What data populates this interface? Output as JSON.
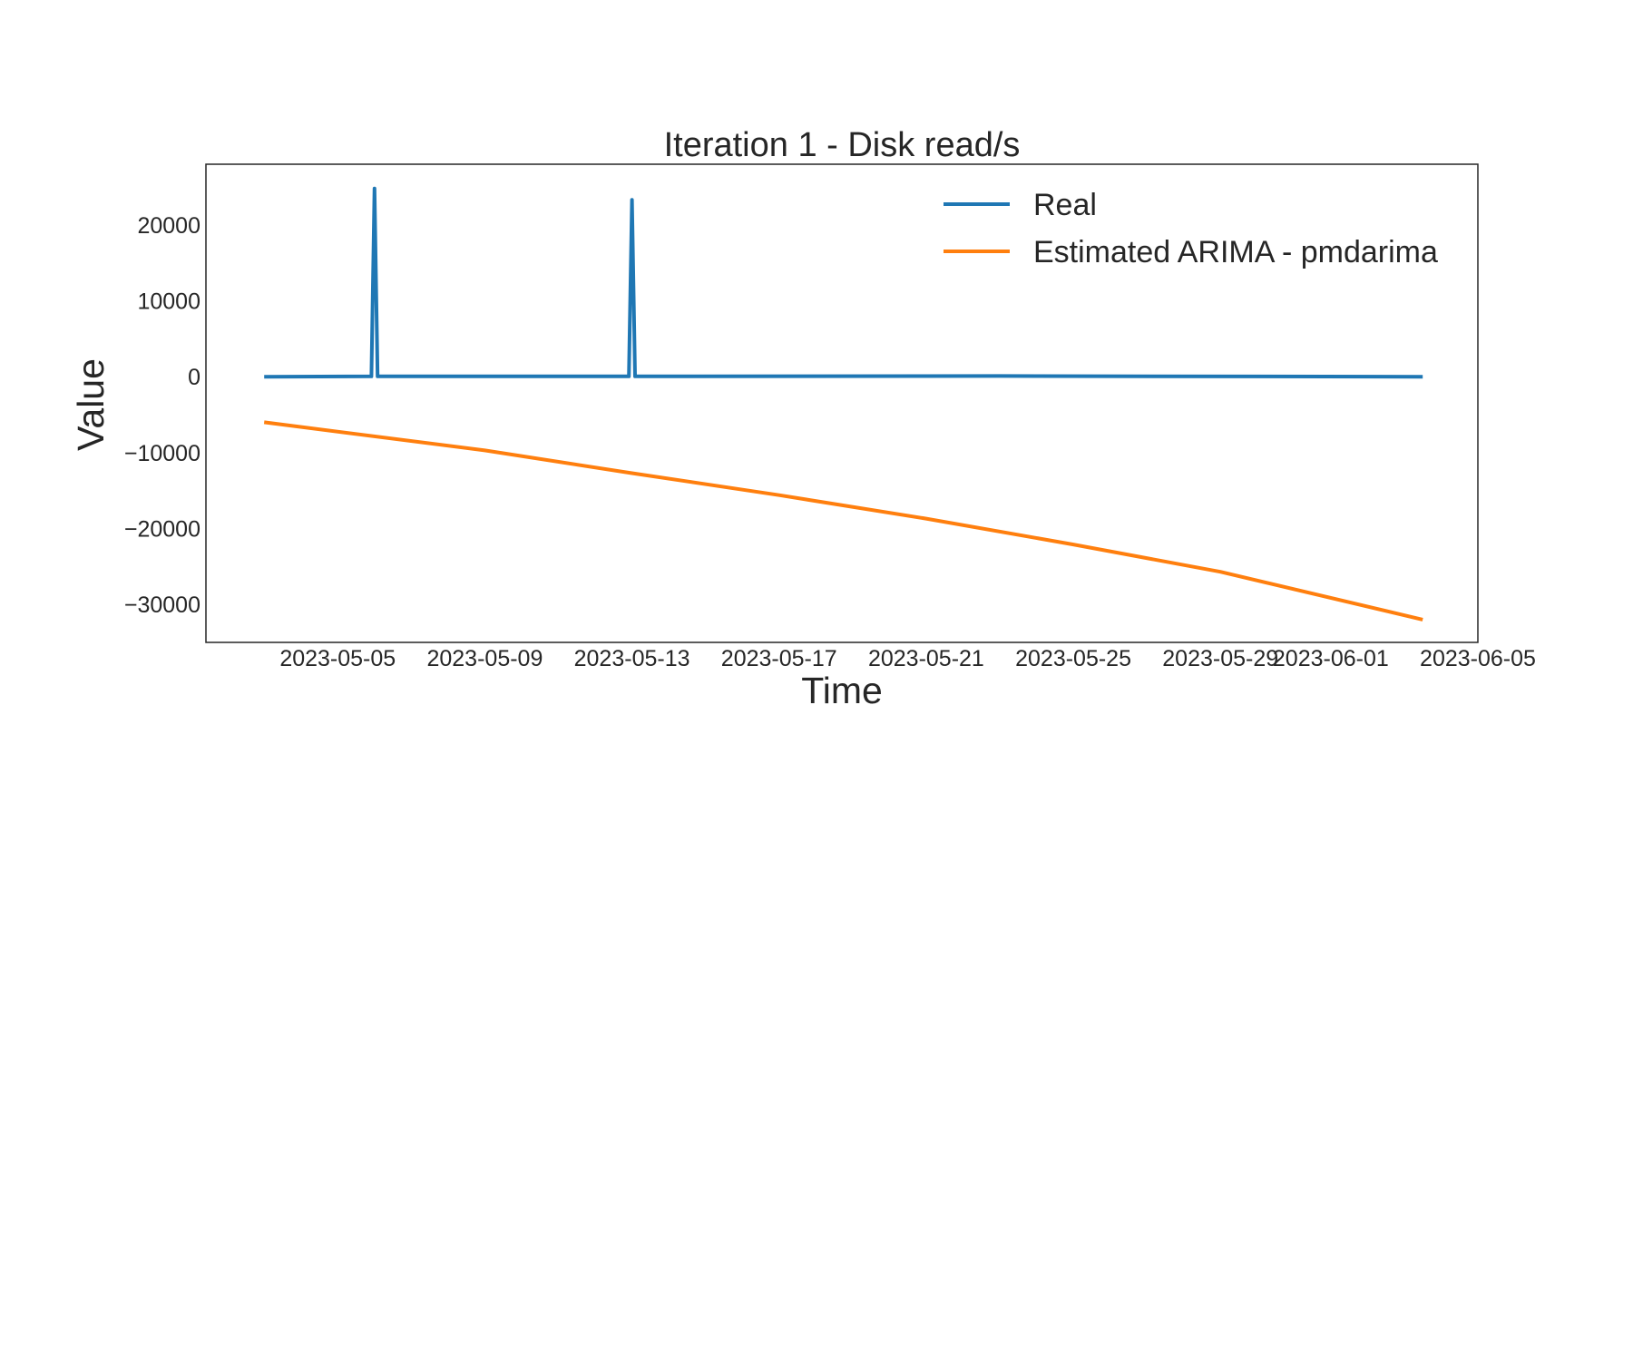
{
  "chart_data": {
    "type": "line",
    "title": "Iteration 1 - Disk read/s",
    "xlabel": "Time",
    "ylabel": "Value",
    "xlim": [
      "2023-05-01T10:00",
      "2023-06-05T00:00"
    ],
    "ylim": [
      -35000,
      28000
    ],
    "xticks": [
      "2023-05-05",
      "2023-05-09",
      "2023-05-13",
      "2023-05-17",
      "2023-05-21",
      "2023-05-25",
      "2023-05-29",
      "2023-06-01",
      "2023-06-05"
    ],
    "yticks": [
      20000,
      10000,
      0,
      -10000,
      -20000,
      -30000
    ],
    "ytick_labels": [
      "20000",
      "10000",
      "0",
      "−10000",
      "−20000",
      "−30000"
    ],
    "grid": false,
    "legend_position": "top-right",
    "series": [
      {
        "name": "Real",
        "color": "#1f77b4",
        "points": [
          [
            "2023-05-03T00:00",
            0
          ],
          [
            "2023-05-05T22:00",
            50
          ],
          [
            "2023-05-06T00:00",
            24800
          ],
          [
            "2023-05-06T02:00",
            50
          ],
          [
            "2023-05-12T22:00",
            50
          ],
          [
            "2023-05-13T00:00",
            23300
          ],
          [
            "2023-05-13T02:00",
            50
          ],
          [
            "2023-05-23T00:00",
            100
          ],
          [
            "2023-06-03T12:00",
            0
          ]
        ]
      },
      {
        "name": "Estimated ARIMA - pmdarima",
        "color": "#ff7f0e",
        "points": [
          [
            "2023-05-03T00:00",
            -6000
          ],
          [
            "2023-05-09T00:00",
            -9700
          ],
          [
            "2023-05-13T00:00",
            -12700
          ],
          [
            "2023-05-17T00:00",
            -15600
          ],
          [
            "2023-05-21T00:00",
            -18700
          ],
          [
            "2023-05-25T00:00",
            -22100
          ],
          [
            "2023-05-29T00:00",
            -25700
          ],
          [
            "2023-06-03T12:00",
            -32000
          ]
        ]
      }
    ]
  }
}
